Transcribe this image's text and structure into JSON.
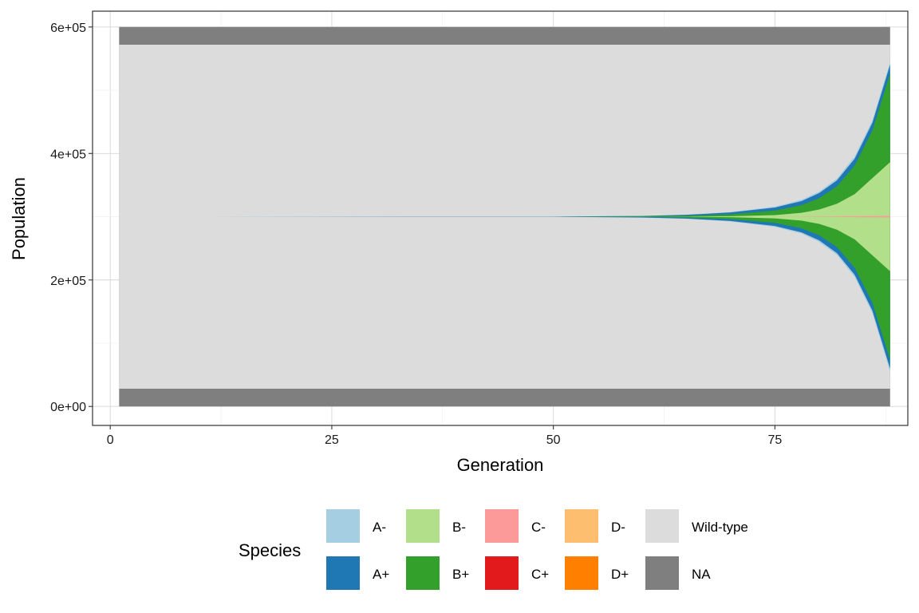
{
  "chart_data": {
    "type": "area",
    "subtype": "symmetric stacked area (muller plot)",
    "title": "",
    "xlabel": "Generation",
    "ylabel": "Population",
    "xlim": [
      -2,
      90
    ],
    "ylim": [
      -30000,
      625000
    ],
    "x_ticks": [
      0,
      25,
      50,
      75
    ],
    "x_tick_labels": [
      "0",
      "25",
      "50",
      "75"
    ],
    "y_ticks": [
      0,
      200000,
      400000,
      600000
    ],
    "y_tick_labels": [
      "0e+00",
      "2e+05",
      "4e+05",
      "6e+05"
    ],
    "grid": true,
    "legend_title": "Species",
    "legend_position": "bottom",
    "x": [
      1,
      50,
      60,
      65,
      70,
      75,
      78,
      80,
      82,
      84,
      86,
      88
    ],
    "total": 600000,
    "na_band": 28000,
    "series": [
      {
        "name": "A-",
        "color": "#a6cee3",
        "values": [
          0,
          50,
          300,
          700,
          1500,
          2800,
          4000,
          5000,
          6000,
          7000,
          8000,
          9000
        ]
      },
      {
        "name": "A+",
        "color": "#1f78b4",
        "values": [
          0,
          300,
          1500,
          3000,
          6000,
          10000,
          13000,
          16000,
          19000,
          22000,
          25000,
          28000
        ]
      },
      {
        "name": "B-",
        "color": "#b2df8a",
        "values": [
          0,
          0,
          100,
          400,
          1500,
          5000,
          12000,
          22000,
          40000,
          70000,
          120000,
          170000
        ]
      },
      {
        "name": "B+",
        "color": "#33a02c",
        "values": [
          0,
          100,
          800,
          2500,
          6000,
          14000,
          24000,
          36000,
          55000,
          90000,
          150000,
          280000
        ]
      },
      {
        "name": "C-",
        "color": "#fb9a99",
        "values": [
          0,
          0,
          0,
          0,
          0,
          200,
          400,
          700,
          1000,
          1500,
          2000,
          2500
        ]
      },
      {
        "name": "C+",
        "color": "#e31a1c",
        "values": [
          0,
          0,
          0,
          0,
          0,
          0,
          0,
          0,
          0,
          0,
          0,
          0
        ]
      },
      {
        "name": "D-",
        "color": "#fdbf6f",
        "values": [
          0,
          0,
          0,
          0,
          0,
          0,
          0,
          0,
          0,
          0,
          0,
          0
        ]
      },
      {
        "name": "D+",
        "color": "#ff7f00",
        "values": [
          0,
          0,
          0,
          0,
          0,
          0,
          0,
          0,
          0,
          0,
          0,
          0
        ]
      },
      {
        "name": "Wild-type",
        "color": "#dcdcdc"
      },
      {
        "name": "NA",
        "color": "#7f7f7f"
      }
    ]
  }
}
